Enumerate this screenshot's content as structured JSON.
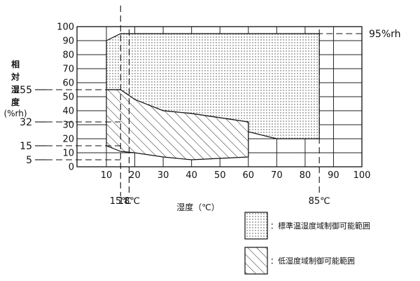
{
  "chart_data": {
    "type": "area",
    "xlabel": "湿度（℃）",
    "ylabel_chars": [
      "相",
      "対",
      "湿",
      "度"
    ],
    "ylabel_unit": "(%rh)",
    "xlim": [
      0,
      100
    ],
    "ylim": [
      0,
      100
    ],
    "x_ticks": [
      10,
      20,
      30,
      40,
      50,
      60,
      70,
      80,
      90,
      100
    ],
    "y_ticks": [
      0,
      10,
      20,
      30,
      40,
      50,
      60,
      70,
      80,
      90,
      100
    ],
    "grid": true,
    "series": [
      {
        "name": "：標準温湿度域制御可能範囲",
        "pattern": "dots",
        "points": [
          [
            10,
            90
          ],
          [
            15,
            95
          ],
          [
            85,
            95
          ],
          [
            85,
            20
          ],
          [
            70,
            20
          ],
          [
            60,
            25
          ],
          [
            60,
            32
          ],
          [
            50,
            35
          ],
          [
            40,
            38
          ],
          [
            30,
            40
          ],
          [
            20,
            48
          ],
          [
            15,
            55
          ],
          [
            10,
            55
          ]
        ]
      },
      {
        "name": "：低湿度域制御可能範囲",
        "pattern": "hatch",
        "points": [
          [
            10,
            55
          ],
          [
            15,
            55
          ],
          [
            20,
            48
          ],
          [
            30,
            40
          ],
          [
            40,
            38
          ],
          [
            50,
            35
          ],
          [
            60,
            32
          ],
          [
            60,
            7
          ],
          [
            40,
            5
          ],
          [
            30,
            7
          ],
          [
            20,
            10
          ],
          [
            15,
            11
          ],
          [
            10,
            15
          ]
        ]
      }
    ],
    "reference_lines": {
      "horizontal": [
        {
          "y": 95,
          "label": "95%rh",
          "side": "right"
        },
        {
          "y": 55,
          "label": "55",
          "side": "left"
        },
        {
          "y": 32,
          "label": "32",
          "side": "left"
        },
        {
          "y": 15,
          "label": "15",
          "side": "left"
        },
        {
          "y": 5,
          "label": "5",
          "side": "left"
        }
      ],
      "vertical": [
        {
          "x": 15,
          "label": "15℃"
        },
        {
          "x": 18,
          "label": "18℃"
        },
        {
          "x": 85,
          "label": "85℃"
        }
      ]
    }
  }
}
